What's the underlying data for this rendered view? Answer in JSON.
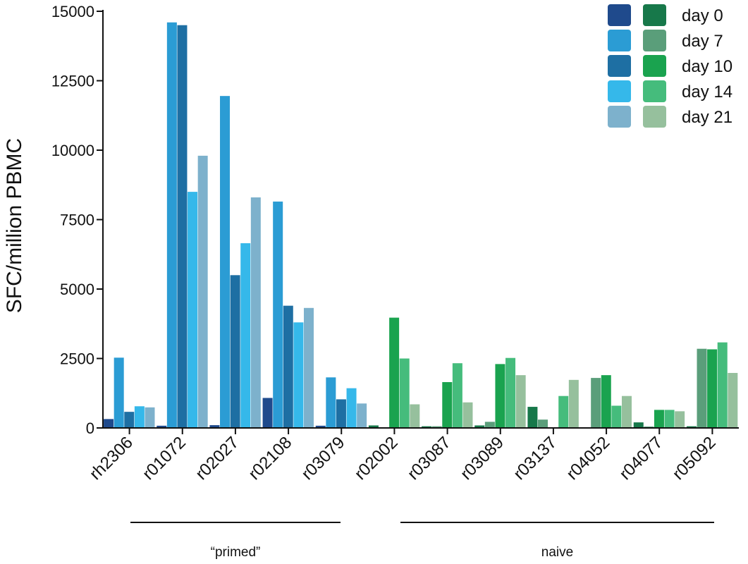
{
  "chart_data": {
    "type": "bar",
    "ylabel": "SFC/million PBMC",
    "xlabel": "",
    "ylim": [
      0,
      15000
    ],
    "yticks": [
      0,
      2500,
      5000,
      7500,
      10000,
      12500,
      15000
    ],
    "grid": false,
    "legend_position": "top-right",
    "categories": [
      "rh2306",
      "r01072",
      "r02027",
      "r02108",
      "r03079",
      "r02002",
      "r03087",
      "r03089",
      "r03137",
      "r04052",
      "r04077",
      "r05092"
    ],
    "series_names": [
      "day 0",
      "day 7",
      "day 10",
      "day 14",
      "day 21"
    ],
    "groups": [
      {
        "label": "“primed”",
        "categories": [
          "rh2306",
          "r01072",
          "r02027",
          "r02108",
          "r03079"
        ],
        "colors": [
          "#1f4a8c",
          "#2b9cd4",
          "#1e6fa3",
          "#35b8ea",
          "#7db1cc"
        ]
      },
      {
        "label": "naive",
        "categories": [
          "r02002",
          "r03087",
          "r03089",
          "r03137",
          "r04052",
          "r04077",
          "r05092"
        ],
        "colors": [
          "#17784a",
          "#5a9e7a",
          "#1aa34f",
          "#45bc7c",
          "#96c09d"
        ]
      }
    ],
    "values": {
      "rh2306": [
        320,
        2530,
        580,
        780,
        740
      ],
      "r01072": [
        80,
        14600,
        14500,
        8500,
        9800
      ],
      "r02027": [
        100,
        11950,
        5500,
        6650,
        8300
      ],
      "r02108": [
        1080,
        8150,
        4400,
        3800,
        4320
      ],
      "r03079": [
        80,
        1820,
        1030,
        1430,
        880
      ],
      "r02002": [
        90,
        0,
        3970,
        2500,
        850
      ],
      "r03087": [
        60,
        60,
        1650,
        2330,
        920
      ],
      "r03089": [
        90,
        220,
        2300,
        2520,
        1900
      ],
      "r03137": [
        760,
        300,
        0,
        1150,
        1730
      ],
      "r04052": [
        0,
        1800,
        1900,
        800,
        1150
      ],
      "r04077": [
        200,
        50,
        650,
        650,
        600
      ],
      "r05092": [
        60,
        2850,
        2830,
        3080,
        1980
      ]
    }
  }
}
